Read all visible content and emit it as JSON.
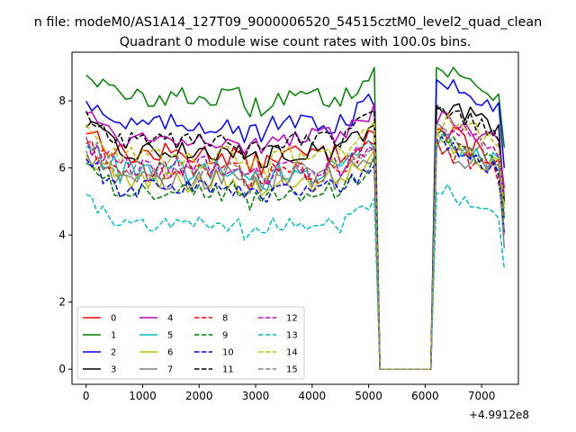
{
  "suptitle": "n file: modeM0/AS1A14_127T09_9000006520_54515cztM0_level2_quad_clean",
  "chart_data": {
    "type": "line",
    "title": "Quadrant 0 module wise count rates with 100.0s bins.",
    "xlabel": "",
    "ylabel": "",
    "x_offset_label": "+4.9912e8",
    "xlim": [
      -250,
      7650
    ],
    "ylim": [
      -0.45,
      9.45
    ],
    "xticks": [
      0,
      1000,
      2000,
      3000,
      4000,
      5000,
      6000,
      7000
    ],
    "yticks": [
      0,
      2,
      4,
      6,
      8
    ],
    "xtick_labels": [
      "0",
      "1000",
      "2000",
      "3000",
      "4000",
      "5000",
      "6000",
      "7000"
    ],
    "ytick_labels": [
      "0",
      "2",
      "4",
      "6",
      "8"
    ],
    "legend_location": "lower-left",
    "legend_columns": 4,
    "gap": [
      5100,
      6050
    ],
    "series": [
      {
        "name": "0",
        "color": "#ff0000",
        "style": "solid",
        "level1": 6.4,
        "level2": 6.6,
        "amp": 0.35
      },
      {
        "name": "1",
        "color": "#008000",
        "style": "solid",
        "level1": 8.1,
        "level2": 8.5,
        "amp": 0.3
      },
      {
        "name": "2",
        "color": "#0000ff",
        "style": "solid",
        "level1": 7.3,
        "level2": 8.2,
        "amp": 0.3
      },
      {
        "name": "3",
        "color": "#000000",
        "style": "solid",
        "level1": 6.5,
        "level2": 7.5,
        "amp": 0.3
      },
      {
        "name": "4",
        "color": "#bf00bf",
        "style": "solid",
        "level1": 6.9,
        "level2": 7.0,
        "amp": 0.3
      },
      {
        "name": "5",
        "color": "#00bfbf",
        "style": "solid",
        "level1": 5.9,
        "level2": 6.4,
        "amp": 0.35
      },
      {
        "name": "6",
        "color": "#bfbf00",
        "style": "solid",
        "level1": 5.6,
        "level2": 6.3,
        "amp": 0.35
      },
      {
        "name": "7",
        "color": "#808080",
        "style": "solid",
        "level1": 5.7,
        "level2": 6.1,
        "amp": 0.35
      },
      {
        "name": "8",
        "color": "#ff0000",
        "style": "dashed",
        "level1": 5.9,
        "level2": 6.2,
        "amp": 0.35
      },
      {
        "name": "9",
        "color": "#008000",
        "style": "dashed",
        "level1": 5.3,
        "level2": 6.4,
        "amp": 0.3
      },
      {
        "name": "10",
        "color": "#0000ff",
        "style": "dashed",
        "level1": 5.4,
        "level2": 6.3,
        "amp": 0.3
      },
      {
        "name": "11",
        "color": "#000000",
        "style": "dashed",
        "level1": 6.8,
        "level2": 7.3,
        "amp": 0.3
      },
      {
        "name": "12",
        "color": "#bf00bf",
        "style": "dashed",
        "level1": 6.0,
        "level2": 6.8,
        "amp": 0.35
      },
      {
        "name": "13",
        "color": "#00bfbf",
        "style": "dashed",
        "level1": 4.3,
        "level2": 4.9,
        "amp": 0.25
      },
      {
        "name": "14",
        "color": "#bfbf00",
        "style": "dashed",
        "level1": 6.3,
        "level2": 7.0,
        "amp": 0.35
      },
      {
        "name": "15",
        "color": "#808080",
        "style": "dashed",
        "level1": 5.9,
        "level2": 6.5,
        "amp": 0.35
      }
    ]
  }
}
